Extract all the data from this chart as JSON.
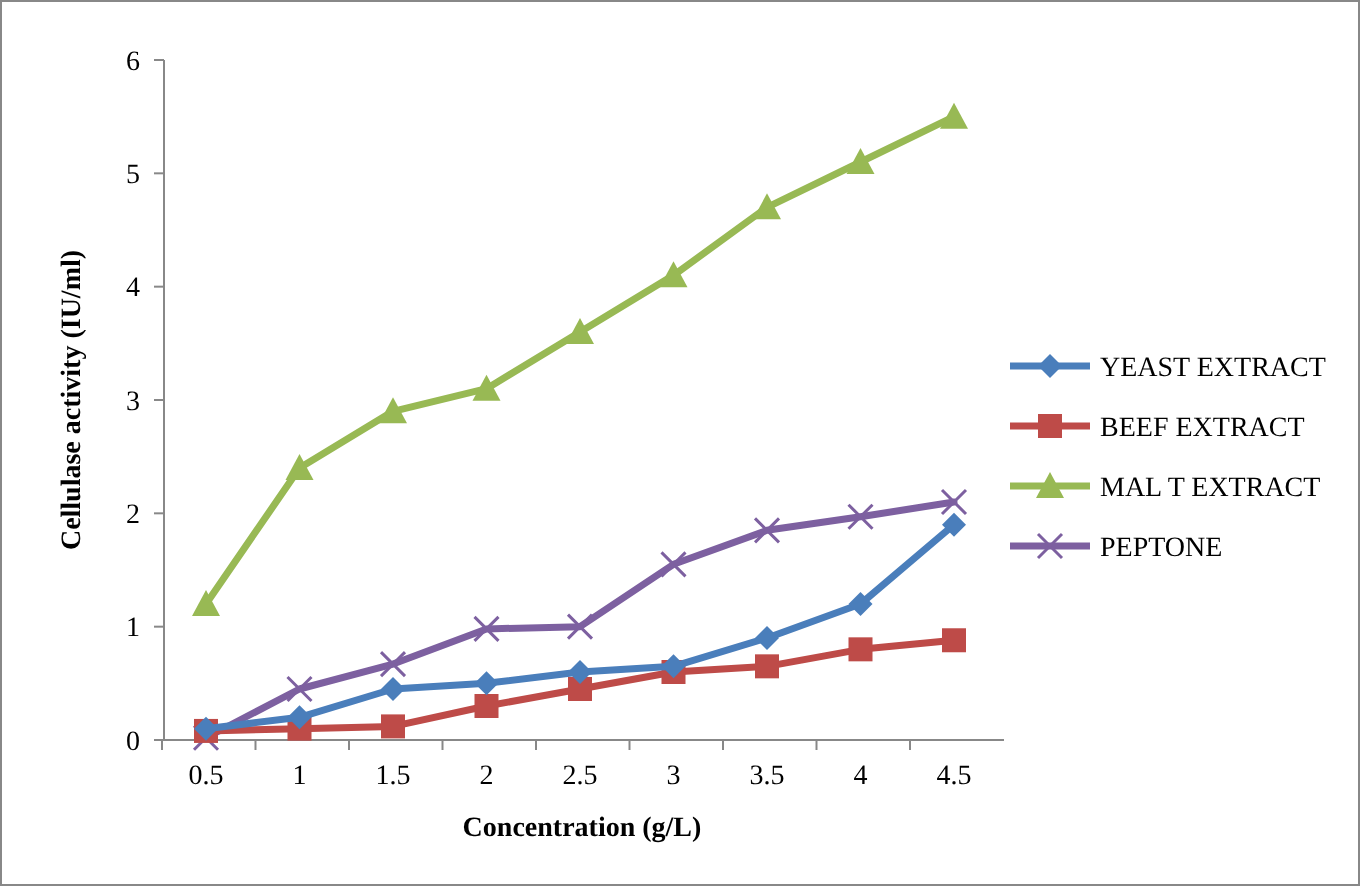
{
  "chart_data": {
    "type": "line",
    "xlabel": "Concentration  (g/L)",
    "ylabel": "Cellulase activity  (IU/ml)",
    "categories": [
      "0.5",
      "1",
      "1.5",
      "2",
      "2.5",
      "3",
      "3.5",
      "4",
      "4.5"
    ],
    "ylim": [
      0,
      6
    ],
    "yticks": [
      0,
      1,
      2,
      3,
      4,
      5,
      6
    ],
    "grid": false,
    "legend": "right",
    "series": [
      {
        "name": "YEAST EXTRACT",
        "color": "#4a7ebb",
        "marker": "diamond",
        "values": [
          0.1,
          0.2,
          0.45,
          0.5,
          0.6,
          0.65,
          0.9,
          1.2,
          1.9
        ]
      },
      {
        "name": "BEEF EXTRACT",
        "color": "#be4b48",
        "marker": "square",
        "values": [
          0.08,
          0.1,
          0.12,
          0.3,
          0.45,
          0.6,
          0.65,
          0.8,
          0.88
        ]
      },
      {
        "name": "MAL T EXTRACT",
        "color": "#98b954",
        "marker": "triangle",
        "values": [
          1.2,
          2.4,
          2.9,
          3.1,
          3.6,
          4.1,
          4.7,
          5.1,
          5.5
        ]
      },
      {
        "name": "PEPTONE",
        "color": "#7d60a0",
        "marker": "cross",
        "values": [
          0.02,
          0.45,
          0.67,
          0.98,
          1.0,
          1.55,
          1.85,
          1.97,
          2.1
        ]
      }
    ]
  }
}
